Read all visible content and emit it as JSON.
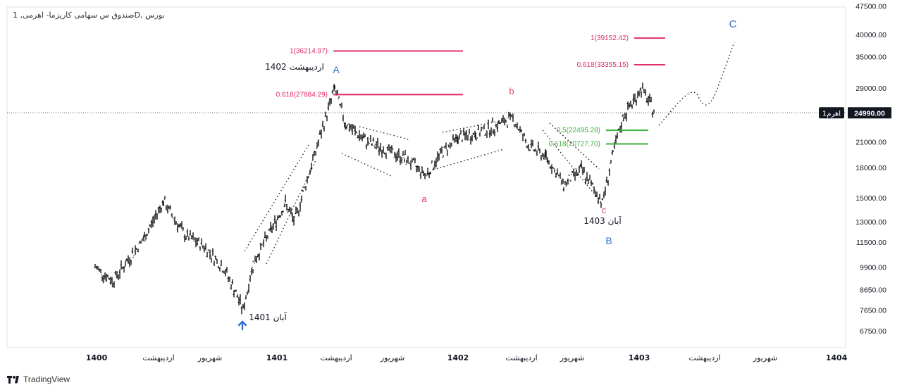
{
  "header": {
    "symbol_text": "بورس ,Dصندوق س سهامی کاریزما- اهرمی, 1"
  },
  "footer": {
    "brand": "TradingView"
  },
  "chart_data": {
    "type": "candlestick",
    "scale": "log",
    "price_axis_labels": [
      "6750.00",
      "7650.00",
      "8650.00",
      "9900.00",
      "11500.00",
      "13000.00",
      "15000.00",
      "18000.00",
      "21000.00",
      "25000.00",
      "29000.00",
      "35000.00",
      "40000.00",
      "47500.00"
    ],
    "time_axis_labels": [
      "1400",
      "اردیبهشت",
      "شهریور",
      "1401",
      "اردیبهشت",
      "شهریور",
      "1402",
      "اردیبهشت",
      "شهریور",
      "1403",
      "اردیبهشت",
      "شهریور",
      "1404"
    ],
    "current_price": {
      "label": "24990.00",
      "tag": "اهرم1",
      "value": 24990
    },
    "series": [
      {
        "name": "price",
        "points": [
          [
            "1400",
            9900
          ],
          [
            "Khordad 1400",
            9100
          ],
          [
            "Tir 1400",
            11800
          ],
          [
            "Tir-end 1400",
            14700
          ],
          [
            "Shahrivar 1400",
            12000
          ],
          [
            "Mehr 1400",
            11200
          ],
          [
            "Aban 1400",
            9800
          ],
          [
            "Dey 1400",
            8600
          ],
          [
            "Aban 1401 low",
            7650
          ],
          [
            "Dey 1401",
            10200
          ],
          [
            "Esfand 1401",
            14500
          ],
          [
            "1401 Farvardin",
            13000
          ],
          [
            "Ordibehesht 1402",
            29000
          ],
          [
            "Khordad 1402",
            23500
          ],
          [
            "Tir 1402",
            21000
          ],
          [
            "Mordad 1402",
            20000
          ],
          [
            "Shahrivar 1402",
            19000
          ],
          [
            "Mehr 1402",
            17200
          ],
          [
            "Aban 1402",
            19500
          ],
          [
            "Azar 1402",
            21500
          ],
          [
            "Dey 1402",
            22000
          ],
          [
            "Esfand 1402",
            23000
          ],
          [
            "Ordibehesht 1403",
            24200
          ],
          [
            "Khordad 1403",
            20500
          ],
          [
            "Tir 1403",
            19200
          ],
          [
            "Mordad 1403",
            16200
          ],
          [
            "Shahrivar 1403",
            17800
          ],
          [
            "Aban 1403 low",
            14600
          ],
          [
            "Azar 1403",
            19500
          ],
          [
            "Dey 1403",
            24500
          ],
          [
            "Bahman 1403",
            28900
          ],
          [
            "Esfand 1403",
            24990
          ]
        ]
      }
    ],
    "fib_levels": [
      {
        "label": "1(36214.97)",
        "value": 36214.97,
        "color": "#e02d6e"
      },
      {
        "label": "0.618(27884.29)",
        "value": 27884.29,
        "color": "#e02d6e"
      },
      {
        "label": "1(39152.42)",
        "value": 39152.42,
        "color": "#e02d6e"
      },
      {
        "label": "0.618(33355.15)",
        "value": 33355.15,
        "color": "#e02d6e"
      },
      {
        "label": "0.5(22495.28)",
        "value": 22495.28,
        "color": "#3fae3f"
      },
      {
        "label": "0.618(20727.70)",
        "value": 20727.7,
        "color": "#3fae3f"
      }
    ],
    "wave_labels": {
      "A": "A",
      "B": "B",
      "C": "C",
      "a": "a",
      "b": "b",
      "c": "c"
    },
    "annotations": {
      "top_1402": "اردیبهشت 1402",
      "low_1401": "آبان 1401",
      "low_1403": "آبان 1403"
    },
    "colors": {
      "candles": "#000000",
      "fib_red": "#e02d6e",
      "fib_green": "#3fae3f",
      "wave_major": "#2f6fd1",
      "wave_minor": "#e0425c",
      "arrow": "#2f6fd1"
    },
    "grid": false
  }
}
